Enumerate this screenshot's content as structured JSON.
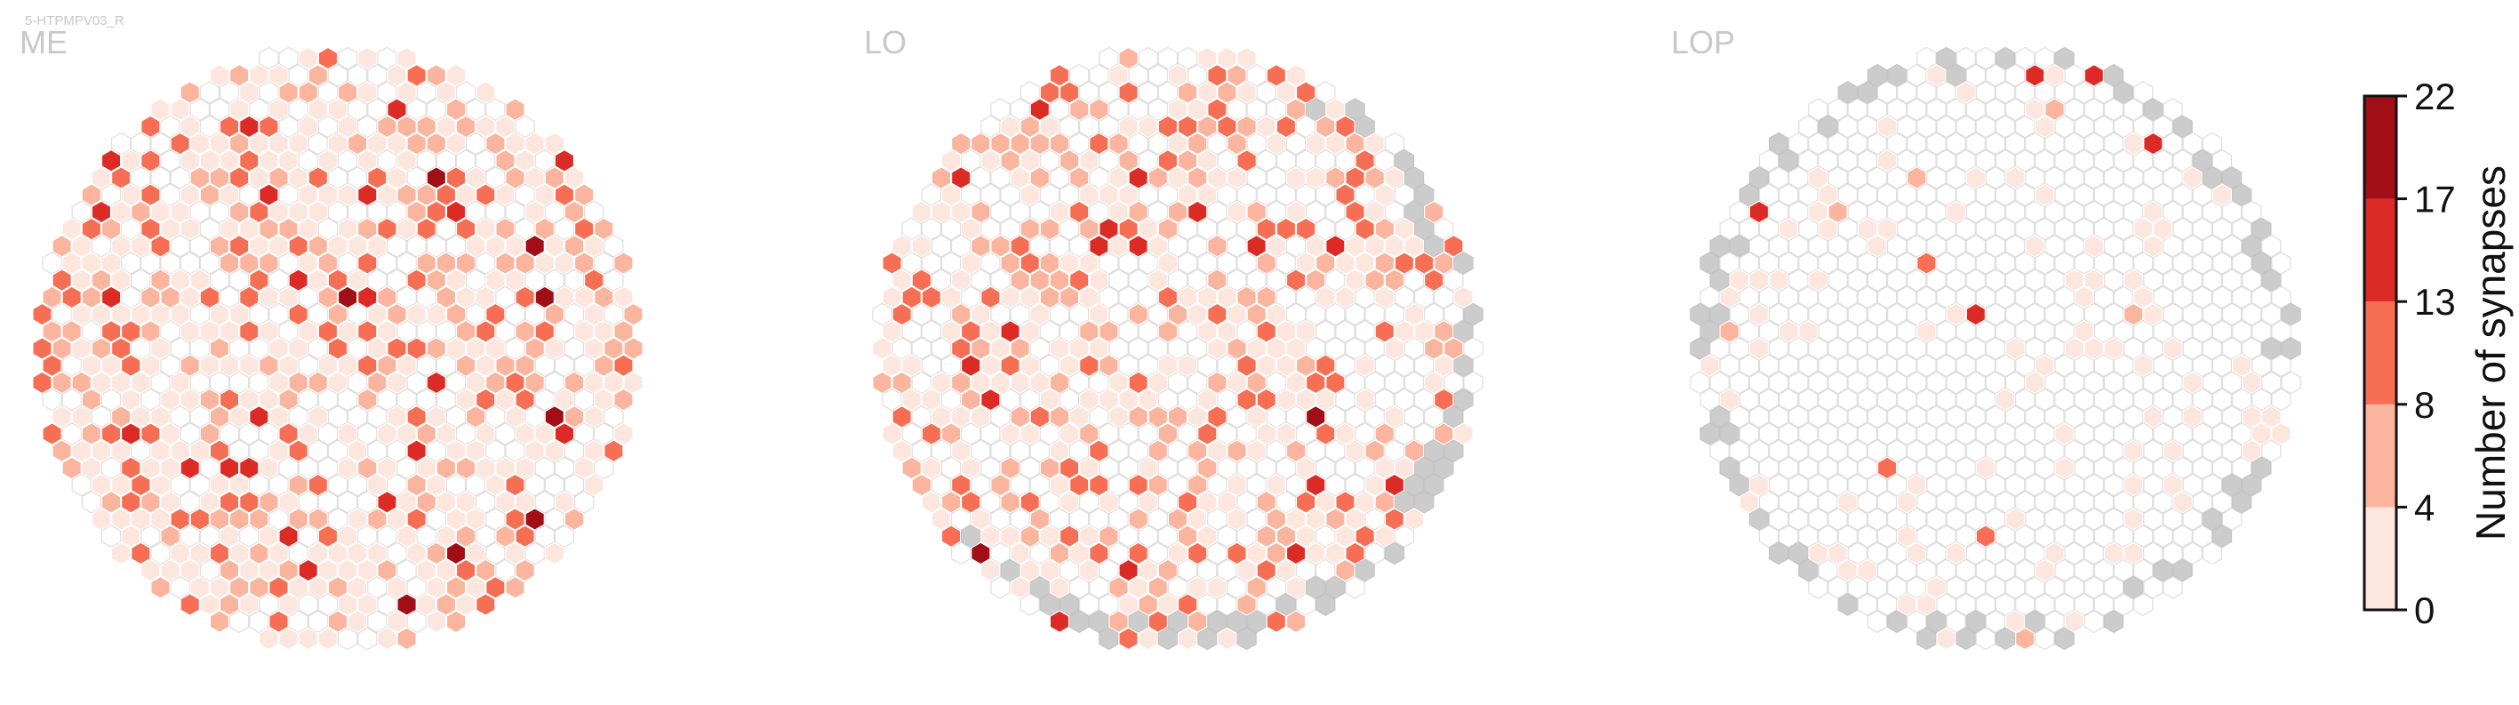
{
  "cell_id": "5-HTPMPV03_R",
  "colors": {
    "empty_stroke": "#dedede",
    "out_of_roi": "#cccccc",
    "palette": [
      "#fde6dd",
      "#fbb49d",
      "#f66e53",
      "#dc2a25",
      "#a10e15"
    ]
  },
  "chart_data": {
    "type": "heatmap",
    "panels": [
      {
        "name": "ME",
        "hex_rows": 25,
        "hex_max_cols": 26,
        "empty_fraction": 0.35,
        "level_weights": [
          0.55,
          0.25,
          0.15,
          0.04,
          0.01
        ],
        "has_out_of_roi": false
      },
      {
        "name": "LO",
        "hex_rows": 25,
        "hex_max_cols": 26,
        "empty_fraction": 0.4,
        "level_weights": [
          0.52,
          0.25,
          0.17,
          0.05,
          0.01
        ],
        "has_out_of_roi": true
      },
      {
        "name": "LOP",
        "hex_rows": 25,
        "hex_max_cols": 26,
        "empty_fraction": 0.85,
        "level_weights": [
          0.88,
          0.06,
          0.03,
          0.03,
          0.0
        ],
        "has_out_of_roi": true
      }
    ],
    "colorbar": {
      "label": "Number of synapses",
      "ticks": [
        "0",
        "4",
        "8",
        "13",
        "17",
        "22"
      ],
      "bounds": [
        0,
        4,
        8,
        13,
        17,
        22
      ]
    }
  }
}
